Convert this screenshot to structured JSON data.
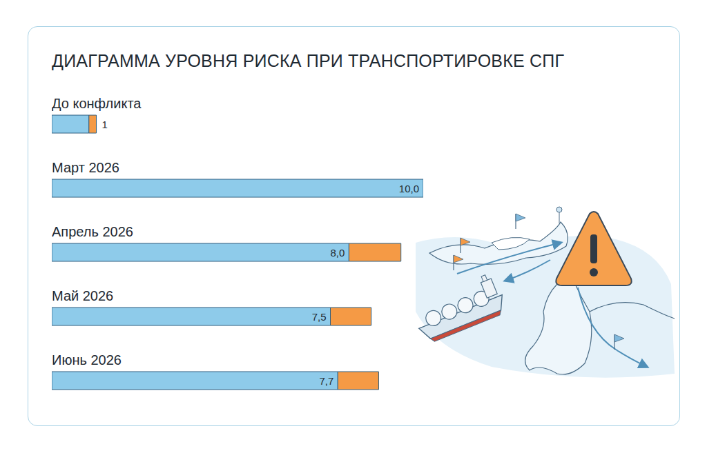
{
  "chart_data": {
    "type": "bar",
    "title": "ДИАГРАММА УРОВНЯ РИСКА ПРИ ТРАНСПОРТИРОВКЕ СПГ",
    "orientation": "horizontal",
    "stacked": true,
    "categories": [
      "До конфликта",
      "Март 2026",
      "Апрель 2026",
      "Май 2026",
      "Июнь 2026"
    ],
    "series": [
      {
        "color": "#8ecbea",
        "values": [
          1,
          10.0,
          8.0,
          7.5,
          7.7
        ],
        "value_labels": [
          "1",
          "10,0",
          "8,0",
          "7,5",
          "7,7"
        ]
      },
      {
        "color": "#f59a45",
        "values": [
          0.2,
          0,
          1.4,
          1.1,
          1.1
        ]
      }
    ],
    "xlim": [
      0,
      10
    ],
    "xticks": [
      0,
      10
    ],
    "data_labels": true,
    "tick_labels": false,
    "grid": false
  }
}
